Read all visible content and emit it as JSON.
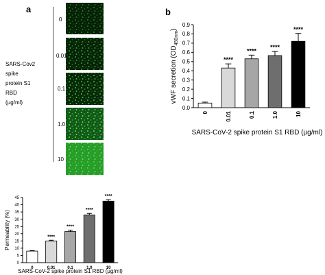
{
  "panel_labels": [
    "a",
    "b"
  ],
  "panel_a": {
    "side_label": [
      "SARS-Cov2",
      "spike",
      "protein S1",
      "RBD",
      "(µg/ml)"
    ],
    "concentrations": [
      "0",
      "0.01",
      "0.1",
      "1.0",
      "10"
    ]
  },
  "chart_data": [
    {
      "type": "bar",
      "y_label": "vWF secretion (OD",
      "y_label_sub": "450nm",
      "y_label_end": ")",
      "x_label": "SARS-CoV-2 spike protein S1 RBD (µg/ml)",
      "categories": [
        "0",
        "0.01",
        "0.1",
        "1.0",
        "10"
      ],
      "values": [
        0.05,
        0.43,
        0.53,
        0.565,
        0.72
      ],
      "errors": [
        0.01,
        0.045,
        0.04,
        0.045,
        0.085
      ],
      "annotations": [
        null,
        "****",
        "****",
        "****",
        "****"
      ],
      "colors": [
        "#ffffff",
        "#d9d9d9",
        "#a6a6a6",
        "#6e6e6e",
        "#000000"
      ],
      "ylim": [
        0,
        0.9
      ],
      "yticks": [
        {
          "value": 0,
          "label": "0.0"
        },
        0.1,
        0.2,
        0.3,
        0.4,
        0.5,
        0.6,
        0.7,
        0.8,
        0.9
      ]
    },
    {
      "type": "bar",
      "y_label": "Permeability (%)",
      "x_label": "SARS-CoV-2 spike protein S1 RBD (µg/ml)",
      "categories": [
        "0",
        "0.01",
        "0.1",
        "1.0",
        "10"
      ],
      "values": [
        8,
        15,
        21.5,
        33,
        42.5
      ],
      "errors": [
        0.3,
        0.5,
        1,
        1,
        1
      ],
      "annotations": [
        null,
        "****",
        "****",
        "****",
        "****"
      ],
      "colors": [
        "#ffffff",
        "#d9d9d9",
        "#a6a6a6",
        "#6e6e6e",
        "#000000"
      ],
      "ylim": [
        0,
        45
      ],
      "yticks": [
        0,
        5,
        10,
        15,
        20,
        25,
        30,
        35,
        40,
        45
      ]
    }
  ]
}
